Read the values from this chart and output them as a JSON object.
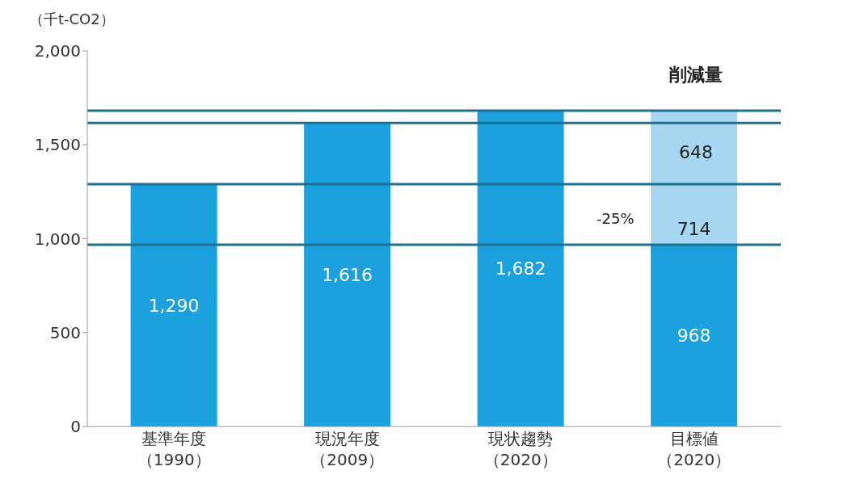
{
  "chart_data": {
    "type": "bar",
    "stacked": true,
    "ylabel": "（千t-CO2）",
    "categories": [
      "基準年度（1990）",
      "現況年度（2009）",
      "現状趨勢（2020）",
      "目標値（2020）"
    ],
    "series": [
      {
        "color": "#1ba1dd",
        "values": [
          1290,
          1616,
          1682,
          968
        ],
        "value_labels": [
          "1,290",
          "1,616",
          "1,682",
          "968"
        ]
      },
      {
        "color": "#a6d6f0",
        "values": [
          null,
          null,
          null,
          714
        ],
        "value_labels": [
          null,
          null,
          null,
          "714"
        ]
      }
    ],
    "ylim": [
      0,
      2000
    ],
    "yticks": [
      0,
      {
        "value": 500,
        "label": "500"
      },
      {
        "value": 1000,
        "label": "1,000"
      },
      {
        "value": 1500,
        "label": "1,500"
      },
      {
        "value": 2000,
        "label": "2,000"
      }
    ],
    "grid": false,
    "ref_lines": [
      {
        "axis": "y",
        "value": 1290,
        "color": "#1f6f8f"
      },
      {
        "axis": "y",
        "value": 1616,
        "color": "#1f6f8f"
      },
      {
        "axis": "y",
        "value": 1682,
        "color": "#1f6f8f"
      },
      {
        "axis": "y",
        "value": 968,
        "color": "#1f6f8f"
      }
    ],
    "annotations": [
      "削減量",
      "648",
      "-25%"
    ]
  }
}
